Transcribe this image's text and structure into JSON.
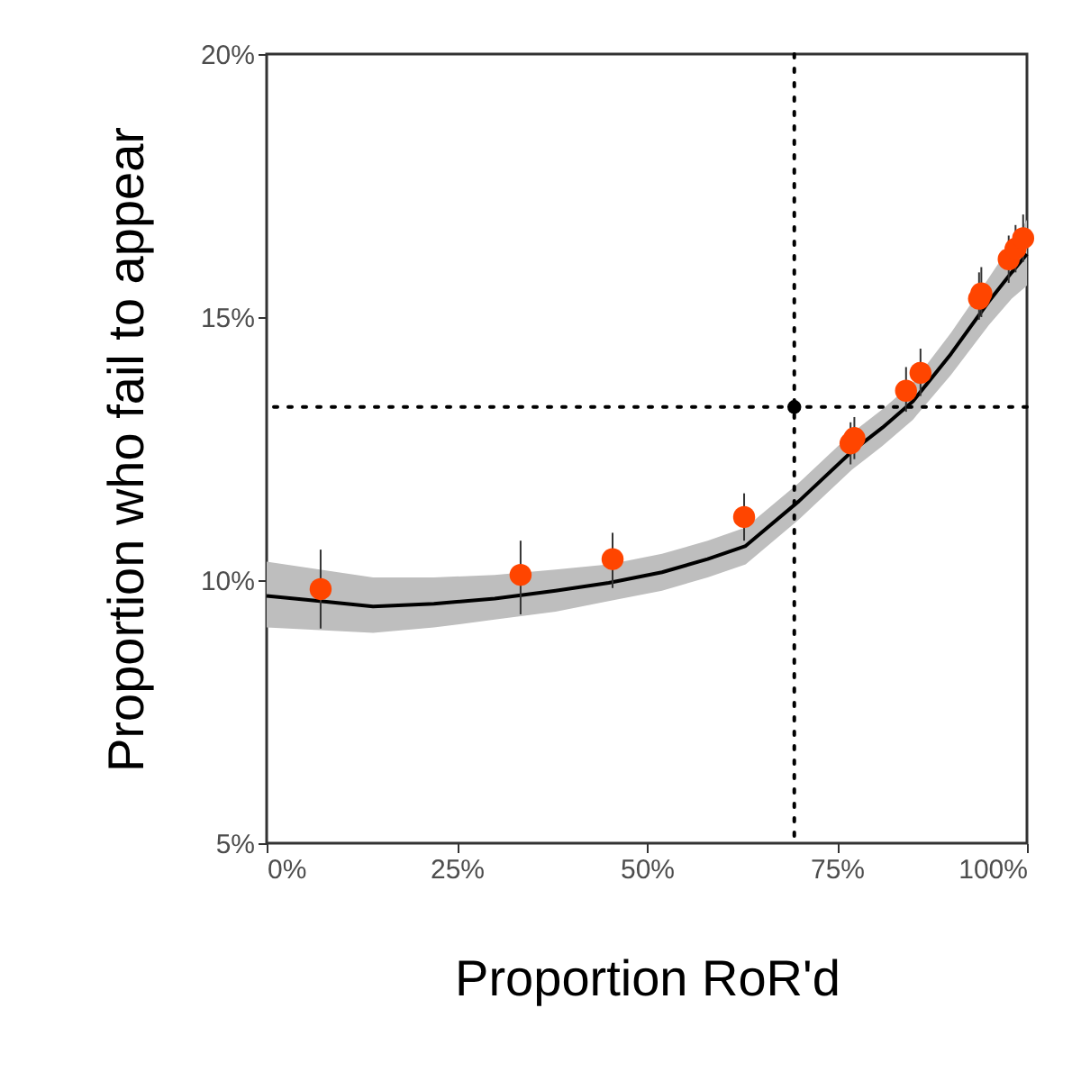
{
  "chart_data": {
    "type": "scatter",
    "xlabel": "Proportion RoR'd",
    "ylabel": "Proportion who fail to appear",
    "xlim": [
      0,
      100
    ],
    "ylim": [
      5,
      20
    ],
    "xticks": [
      {
        "value": 0,
        "label": "0%"
      },
      {
        "value": 25,
        "label": "25%"
      },
      {
        "value": 50,
        "label": "50%"
      },
      {
        "value": 75,
        "label": "75%"
      },
      {
        "value": 100,
        "label": "100%"
      }
    ],
    "yticks": [
      {
        "value": 5,
        "label": "5%"
      },
      {
        "value": 10,
        "label": "10%"
      },
      {
        "value": 15,
        "label": "15%"
      },
      {
        "value": 20,
        "label": "20%"
      }
    ],
    "grid": false,
    "marker": "circle",
    "series": [
      {
        "type": "line",
        "marker": "none",
        "color": "#000000",
        "x": [
          0,
          7,
          14,
          22,
          30,
          38,
          45,
          52,
          58,
          63,
          70,
          77,
          81,
          85,
          90,
          95,
          98,
          100
        ],
        "values": [
          9.7,
          9.6,
          9.5,
          9.55,
          9.65,
          9.8,
          9.95,
          10.15,
          10.4,
          10.65,
          11.5,
          12.45,
          12.9,
          13.4,
          14.3,
          15.3,
          15.85,
          16.2
        ],
        "lower": [
          9.1,
          9.05,
          9.0,
          9.1,
          9.25,
          9.4,
          9.6,
          9.8,
          10.05,
          10.3,
          11.15,
          12.1,
          12.55,
          13.05,
          13.9,
          14.85,
          15.35,
          15.6
        ],
        "upper": [
          10.35,
          10.2,
          10.05,
          10.05,
          10.1,
          10.2,
          10.3,
          10.5,
          10.75,
          11.0,
          11.85,
          12.8,
          13.25,
          13.75,
          14.7,
          15.75,
          16.4,
          16.85
        ]
      },
      {
        "type": "scatter",
        "color": "#ff4500",
        "x": [
          7.1,
          33.4,
          45.5,
          62.8,
          76.8,
          77.3,
          84.1,
          86.0,
          93.7,
          94.0,
          97.6,
          98.5,
          99.5
        ],
        "values": [
          9.83,
          10.1,
          10.4,
          11.2,
          12.6,
          12.7,
          13.6,
          13.94,
          15.35,
          15.45,
          16.1,
          16.3,
          16.5
        ],
        "errors": [
          [
            9.08,
            10.58
          ],
          [
            9.35,
            10.75
          ],
          [
            9.85,
            10.9
          ],
          [
            10.75,
            11.65
          ],
          [
            12.2,
            13.0
          ],
          [
            12.3,
            13.1
          ],
          [
            13.2,
            14.05
          ],
          [
            13.5,
            14.4
          ],
          [
            14.95,
            15.85
          ],
          [
            15.0,
            15.95
          ],
          [
            15.65,
            16.55
          ],
          [
            15.85,
            16.75
          ],
          [
            16.05,
            16.95
          ]
        ]
      },
      {
        "type": "scatter",
        "color": "#000000",
        "x": [
          69.4
        ],
        "values": [
          13.29
        ]
      }
    ],
    "ref_lines": [
      {
        "axis": "x",
        "value": 69.4,
        "line_style": "dotted"
      },
      {
        "axis": "y",
        "value": 13.29,
        "line_style": "dotted"
      }
    ]
  }
}
